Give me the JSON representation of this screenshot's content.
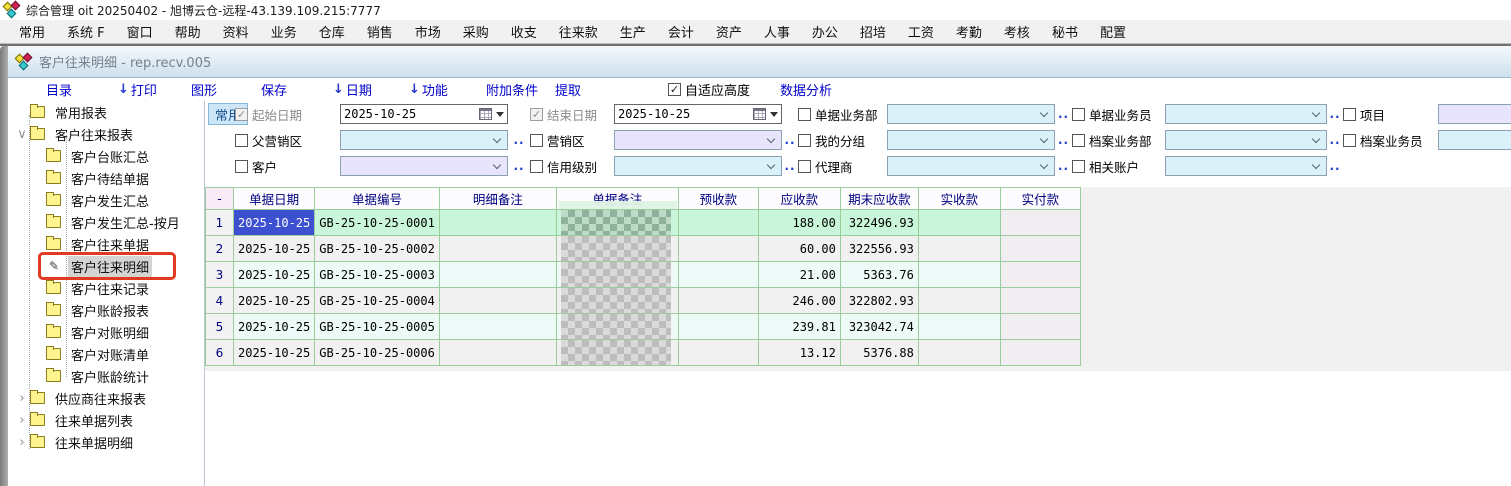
{
  "title_bar": {
    "title": "综合管理 oit 20250402 - 旭博云仓-远程-43.139.109.215:7777"
  },
  "menu": [
    "常用",
    "系统 F",
    "窗口",
    "帮助",
    "资料",
    "业务",
    "仓库",
    "销售",
    "市场",
    "采购",
    "收支",
    "往来款",
    "生产",
    "会计",
    "资产",
    "人事",
    "办公",
    "招培",
    "工资",
    "考勤",
    "考核",
    "秘书",
    "配置"
  ],
  "tab": {
    "title": "客户往来明细 - rep.recv.005"
  },
  "toolbar": {
    "items": [
      {
        "label": "目录",
        "arrow": false
      },
      {
        "label": "打印",
        "arrow": true
      },
      {
        "label": "图形",
        "arrow": false
      },
      {
        "label": "保存",
        "arrow": false
      },
      {
        "label": "日期",
        "arrow": true
      },
      {
        "label": "功能",
        "arrow": true
      },
      {
        "label": "附加条件",
        "arrow": false
      },
      {
        "label": "提取",
        "arrow": false
      }
    ],
    "autofit_label": "自适应高度",
    "autofit_checked": true,
    "analysis_label": "数据分析"
  },
  "sidebar": {
    "items": [
      {
        "label": "常用报表",
        "level": 0,
        "chevron": "none"
      },
      {
        "label": "客户往来报表",
        "level": 0,
        "chevron": "expanded"
      },
      {
        "label": "客户台账汇总",
        "level": 1
      },
      {
        "label": "客户待结单据",
        "level": 1
      },
      {
        "label": "客户发生汇总",
        "level": 1
      },
      {
        "label": "客户发生汇总-按月",
        "level": 1
      },
      {
        "label": "客户往来单据",
        "level": 1
      },
      {
        "label": "客户往来明细",
        "level": 1,
        "selected": true,
        "annotated": true
      },
      {
        "label": "客户往来记录",
        "level": 1
      },
      {
        "label": "客户账龄报表",
        "level": 1
      },
      {
        "label": "客户对账明细",
        "level": 1
      },
      {
        "label": "客户对账清单",
        "level": 1
      },
      {
        "label": "客户账龄统计",
        "level": 1
      },
      {
        "label": "供应商往来报表",
        "level": 0,
        "chevron": "collapsed"
      },
      {
        "label": "往来单据列表",
        "level": 0,
        "chevron": "collapsed"
      },
      {
        "label": "往来单据明细",
        "level": 0,
        "chevron": "collapsed"
      }
    ]
  },
  "filters": {
    "tab_label": "常用",
    "rows": [
      [
        {
          "label": "起始日期",
          "checked": true,
          "disabled": true,
          "type": "date",
          "value": "2025-10-25"
        },
        {
          "label": "结束日期",
          "checked": true,
          "disabled": true,
          "type": "date",
          "value": "2025-10-25"
        },
        {
          "label": "单据业务部",
          "checked": false,
          "type": "select",
          "tint": "azure",
          "dots": true
        },
        {
          "label": "单据业务员",
          "checked": false,
          "type": "select",
          "tint": "azure",
          "dots": true
        },
        {
          "label": "项目",
          "checked": false,
          "type": "input",
          "tint": "lavender"
        }
      ],
      [
        {
          "label": "父营销区",
          "checked": false,
          "type": "select",
          "tint": "azure",
          "dots": true
        },
        {
          "label": "营销区",
          "checked": false,
          "type": "select",
          "tint": "lavender",
          "dots": true
        },
        {
          "label": "我的分组",
          "checked": false,
          "type": "select",
          "tint": "azure",
          "dots": true
        },
        {
          "label": "档案业务部",
          "checked": false,
          "type": "select",
          "tint": "azure",
          "dots": true
        },
        {
          "label": "档案业务员",
          "checked": false,
          "type": "input",
          "tint": "azure"
        }
      ],
      [
        {
          "label": "客户",
          "checked": false,
          "type": "select",
          "tint": "lavender",
          "dots": true
        },
        {
          "label": "信用级别",
          "checked": false,
          "type": "select",
          "tint": "azure",
          "dots": true
        },
        {
          "label": "代理商",
          "checked": false,
          "type": "select",
          "tint": "azure",
          "dots": true
        },
        {
          "label": "相关账户",
          "checked": false,
          "type": "select",
          "tint": "azure",
          "dots": true
        }
      ]
    ]
  },
  "grid": {
    "columns": [
      {
        "label": "-",
        "width": 28
      },
      {
        "label": "单据日期",
        "width": 71
      },
      {
        "label": "单据编号",
        "width": 112
      },
      {
        "label": "明细备注",
        "width": 117
      },
      {
        "label": "单据备注",
        "width": 122,
        "censored": true
      },
      {
        "label": "预收款",
        "width": 80
      },
      {
        "label": "应收款",
        "width": 82
      },
      {
        "label": "期末应收款",
        "width": 78
      },
      {
        "label": "实收款",
        "width": 82
      },
      {
        "label": "实付款",
        "width": 80
      }
    ],
    "rows": [
      {
        "n": "1",
        "date": "2025-10-25",
        "doc_no": "GB-25-10-25-0001",
        "detail_note": "",
        "remark_censored": true,
        "advance": "",
        "receivable": "188.00",
        "ending_receivable": "322496.93",
        "received": "",
        "paid": "",
        "selected": true
      },
      {
        "n": "2",
        "date": "2025-10-25",
        "doc_no": "GB-25-10-25-0002",
        "detail_note": "",
        "remark_censored": true,
        "advance": "",
        "receivable": "60.00",
        "ending_receivable": "322556.93",
        "received": "",
        "paid": ""
      },
      {
        "n": "3",
        "date": "2025-10-25",
        "doc_no": "GB-25-10-25-0003",
        "detail_note": "",
        "remark_censored": true,
        "advance": "",
        "receivable": "21.00",
        "ending_receivable": "5363.76",
        "received": "",
        "paid": "",
        "alt": true
      },
      {
        "n": "4",
        "date": "2025-10-25",
        "doc_no": "GB-25-10-25-0004",
        "detail_note": "",
        "remark_censored": true,
        "advance": "",
        "receivable": "246.00",
        "ending_receivable": "322802.93",
        "received": "",
        "paid": ""
      },
      {
        "n": "5",
        "date": "2025-10-25",
        "doc_no": "GB-25-10-25-0005",
        "detail_note": "",
        "remark_censored": true,
        "advance": "",
        "receivable": "239.81",
        "ending_receivable": "323042.74",
        "received": "",
        "paid": "",
        "alt": true
      },
      {
        "n": "6",
        "date": "2025-10-25",
        "doc_no": "GB-25-10-25-0006",
        "detail_note": "",
        "remark_censored": true,
        "advance": "",
        "receivable": "13.12",
        "ending_receivable": "5376.88",
        "received": "",
        "paid": ""
      }
    ]
  },
  "colors": {
    "toolbar_link": "#0000cd",
    "grid_border": "#9ccc9c",
    "selected_row": "#c9f6da",
    "selected_cell": "#3c50d0",
    "annotation_red": "#e23a22",
    "folder_yellow": "#fdf48e",
    "tint_azure": "#daf1fa",
    "tint_lavender": "#e7e4fb"
  }
}
